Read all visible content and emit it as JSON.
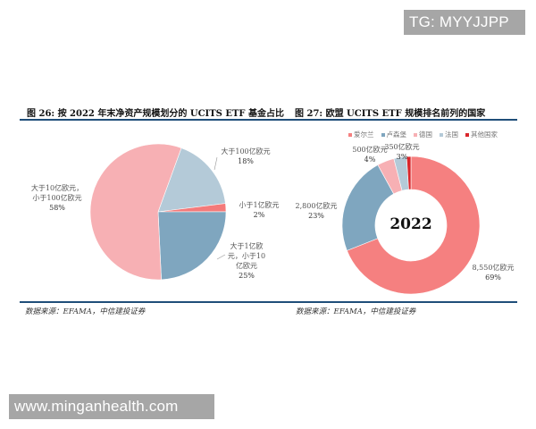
{
  "watermarks": {
    "top_right": "TG: MYYJJPP",
    "bottom_left": "www.minganhealth.com"
  },
  "figures": {
    "left": {
      "title": "图 26: 按 2022 年末净资产规模划分的 UCITS ETF 基金占比",
      "source": "数据来源：EFAMA，中信建投证券"
    },
    "right": {
      "title": "图 27: 欧盟 UCITS ETF 规模排名前列的国家",
      "source": "数据来源：EFAMA，中信建投证券",
      "center_label": "2022"
    }
  },
  "chart_data": [
    {
      "type": "pie",
      "title": "图 26: 按 2022 年末净资产规模划分的 UCITS ETF 基金占比",
      "categories": [
        "大于100亿欧元",
        "小于1亿欧元",
        "大于1亿欧元，小于10亿欧元",
        "大于10亿欧元，小于100亿欧元"
      ],
      "values": [
        18,
        2,
        25,
        58
      ],
      "unit": "%",
      "colors": [
        "#b4cad8",
        "#f47a7a",
        "#7fa6bf",
        "#f7b0b4"
      ],
      "labels": [
        {
          "lines": [
            "大于100亿欧元",
            "18%"
          ]
        },
        {
          "lines": [
            "小于1亿欧元",
            "2%"
          ]
        },
        {
          "lines": [
            "大于1亿欧",
            "元，小于10",
            "亿欧元",
            "25%"
          ]
        },
        {
          "lines": [
            "大于10亿欧元，",
            "小于100亿欧元",
            "58%"
          ]
        }
      ],
      "source": "数据来源：EFAMA，中信建投证券"
    },
    {
      "type": "pie",
      "subtype": "donut",
      "title": "图 27: 欧盟 UCITS ETF 规模排名前列的国家",
      "center_label": "2022",
      "categories": [
        "爱尔兰",
        "卢森堡",
        "德国",
        "法国",
        "其他国家"
      ],
      "values_eur_100m": [
        8550,
        2800,
        500,
        350,
        null
      ],
      "values_pct": [
        69,
        23,
        4,
        3,
        1
      ],
      "colors": [
        "#f58080",
        "#7fa6bf",
        "#f7b0b4",
        "#b4cad8",
        "#d9262b"
      ],
      "labels": [
        {
          "lines": [
            "8,550亿欧元",
            "69%"
          ]
        },
        {
          "lines": [
            "2,800亿欧元",
            "23%"
          ]
        },
        {
          "lines": [
            "500亿欧元",
            "4%"
          ]
        },
        {
          "lines": [
            "350亿欧元",
            "3%"
          ]
        }
      ],
      "legend": {
        "position": "top",
        "entries": [
          "爱尔兰",
          "卢森堡",
          "德国",
          "法国",
          "其他国家"
        ]
      },
      "source": "数据来源：EFAMA，中信建投证券"
    }
  ]
}
